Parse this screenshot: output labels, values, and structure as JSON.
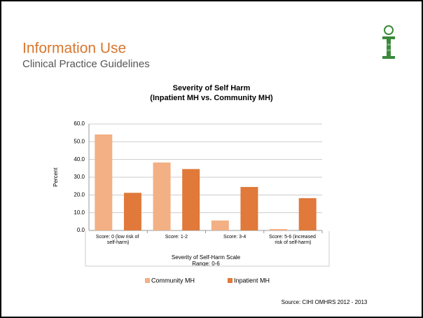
{
  "header": {
    "title": "Information Use",
    "subtitle": "Clinical Practice Guidelines",
    "logo_top": "CIHI",
    "logo_bottom": "ICIS"
  },
  "chart_data": {
    "type": "bar",
    "title": "Severity of Self Harm",
    "subtitle": "(Inpatient MH vs. Community MH)",
    "y_label": "Percent",
    "x_label": "Severity of Self-Harm Scale",
    "x_sublabel": "Range: 0-6",
    "categories": [
      "Score: 0 (low risk of self-harm)",
      "Score: 1-2",
      "Score: 3-4",
      "Score: 5-6 (increased risk of self-harm)"
    ],
    "series": [
      {
        "name": "Community MH",
        "color": "#f2b084",
        "values": [
          54.1,
          38.3,
          5.6,
          0.8
        ]
      },
      {
        "name": "Inpatient MH",
        "color": "#e0793a",
        "values": [
          21.2,
          34.6,
          24.5,
          18.2
        ]
      }
    ],
    "ylim": [
      0,
      60
    ],
    "yticks": [
      {
        "value": 0,
        "label": "0.0"
      },
      {
        "value": 10,
        "label": "10.0"
      },
      {
        "value": 20,
        "label": "20.0"
      },
      {
        "value": 30,
        "label": "30.0"
      },
      {
        "value": 40,
        "label": "40.0"
      },
      {
        "value": 50,
        "label": "50.0"
      },
      {
        "value": 60,
        "label": "60.0"
      }
    ],
    "grid": true,
    "legend": "bottom",
    "source": "Source: CIHI OMHRS 2012 - 2013"
  }
}
